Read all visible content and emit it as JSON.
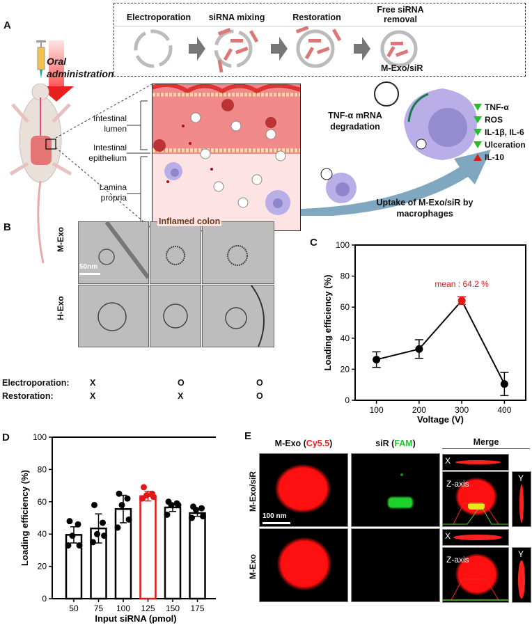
{
  "panel_labels": {
    "a": "A",
    "b": "B",
    "c": "C",
    "d": "D",
    "e": "E"
  },
  "panel_a": {
    "steps": [
      "Electroporation",
      "siRNA mixing",
      "Restoration",
      "Free siRNA removal"
    ],
    "product_label": "M-Exo/siR",
    "oral_label_1": "Oral",
    "oral_label_2": "administration",
    "layers": {
      "lumen_1": "Intestinal",
      "lumen_2": "lumen",
      "epi_1": "Intestinal",
      "epi_2": "epithelium",
      "lp_1": "Lamina",
      "lp_2": "propria"
    },
    "colon_label": "Inflamed colon",
    "degradation_1": "TNF-α mRNA",
    "degradation_2": "degradation",
    "uptake_1": "Uptake of M-Exo/siR by",
    "uptake_2": "macrophages",
    "effects": [
      {
        "label": "TNF-α",
        "direction": "down"
      },
      {
        "label": "ROS",
        "direction": "down"
      },
      {
        "label": "IL-1β, IL-6",
        "direction": "down"
      },
      {
        "label": "Ulceration",
        "direction": "down"
      },
      {
        "label": "IL-10",
        "direction": "up"
      }
    ],
    "colors": {
      "down": "#22c02a",
      "up": "#e21818",
      "arrow": "#7fa8c0",
      "macrophage": "#b9aee8"
    }
  },
  "panel_b": {
    "rows": [
      "M-Exo",
      "H-Exo"
    ],
    "scale_bar": "50nm",
    "conditions": [
      {
        "label": "Electroporation:",
        "values": [
          "X",
          "O",
          "O"
        ]
      },
      {
        "label": "Restoration:",
        "values": [
          "X",
          "X",
          "O"
        ]
      }
    ]
  },
  "chart_data": [
    {
      "type": "line",
      "panel": "C",
      "xlabel": "Voltage (V)",
      "ylabel": "Loading efficiency (%)",
      "x": [
        100,
        200,
        300,
        400
      ],
      "y": [
        26.2,
        33,
        64.2,
        10.5
      ],
      "error": [
        5,
        6,
        2.5,
        7.5
      ],
      "highlight_index": 2,
      "highlight_color": "#e21818",
      "annotation": "mean : 64.2 %",
      "ylim": [
        0,
        100
      ],
      "yticks": [
        0,
        20,
        40,
        60,
        80,
        100
      ],
      "xticks": [
        100,
        200,
        300,
        400
      ],
      "grid": false
    },
    {
      "type": "bar",
      "panel": "D",
      "xlabel": "Input siRNA (pmol)",
      "ylabel": "Loading efficiency (%)",
      "categories": [
        "50",
        "75",
        "100",
        "125",
        "150",
        "175"
      ],
      "values": [
        39.5,
        43.5,
        55.5,
        63.5,
        56.5,
        53
      ],
      "error": [
        5,
        9,
        8.5,
        3,
        2.5,
        2
      ],
      "points": [
        [
          48,
          46,
          39,
          33,
          33
        ],
        [
          58,
          47,
          40,
          39,
          35
        ],
        [
          65,
          62,
          58,
          49,
          44
        ],
        [
          69,
          65,
          64,
          63,
          62
        ],
        [
          60,
          59,
          58,
          58,
          52
        ],
        [
          57,
          56,
          55,
          51,
          50
        ]
      ],
      "highlight_index": 3,
      "highlight_color": "#e21818",
      "ylim": [
        0,
        100
      ],
      "yticks": [
        0,
        20,
        40,
        60,
        80,
        100
      ],
      "grid": false
    }
  ],
  "panel_e": {
    "col1_prefix": "M-Exo (",
    "col1_dye": "Cy5.5",
    "col2_prefix": "siR (",
    "col2_dye": "FAM",
    "close_paren": ")",
    "col3": "Merge",
    "rows": [
      "M-Exo/siR",
      "M-Exo"
    ],
    "scale_bar": "100 nm",
    "axis_x": "X",
    "axis_y": "Y",
    "axis_z": "Z-axis",
    "colors": {
      "cy55": "#ff1a1a",
      "fam": "#1fcc2a"
    }
  }
}
